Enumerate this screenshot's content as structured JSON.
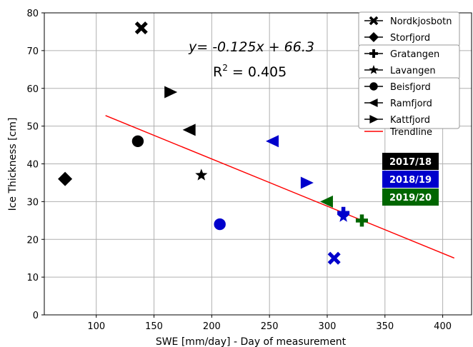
{
  "chart_data": {
    "type": "scatter",
    "xlabel": "SWE [mm/day] - Day of measurement",
    "ylabel": "Ice Thickness [cm]",
    "xlim": [
      55,
      425
    ],
    "ylim": [
      0,
      80
    ],
    "xticks": [
      100,
      150,
      200,
      250,
      300,
      350,
      400
    ],
    "yticks": [
      0,
      10,
      20,
      30,
      40,
      50,
      60,
      70,
      80
    ],
    "grid": true,
    "legend_position": "top-right",
    "equation_text": "y= -0.125x + 66.3",
    "r2_label": "R",
    "r2_superscript": "2",
    "r2_value": " = 0.405",
    "trendline": {
      "name": "Trendline",
      "slope": -0.125,
      "intercept": 66.3,
      "x_range": [
        108,
        410
      ],
      "color": "#ff0000"
    },
    "season_colors": {
      "2017/18": "#000000",
      "2018/19": "#0000cc",
      "2019/20": "#006600"
    },
    "season_badges": [
      "2017/18",
      "2018/19",
      "2019/20"
    ],
    "series": [
      {
        "name": "Nordkjosbotn",
        "marker": "x",
        "points": [
          {
            "x": 139,
            "y": 76,
            "season": "2017/18"
          },
          {
            "x": 306,
            "y": 15,
            "season": "2018/19"
          }
        ]
      },
      {
        "name": "Storfjord",
        "marker": "diamond",
        "points": [
          {
            "x": 73,
            "y": 36,
            "season": "2017/18"
          }
        ]
      },
      {
        "name": "Gratangen",
        "marker": "plus",
        "points": [
          {
            "x": 314,
            "y": 27,
            "season": "2018/19"
          },
          {
            "x": 330,
            "y": 25,
            "season": "2019/20"
          }
        ]
      },
      {
        "name": "Lavangen",
        "marker": "star",
        "points": [
          {
            "x": 191,
            "y": 37,
            "season": "2017/18"
          },
          {
            "x": 314,
            "y": 26,
            "season": "2018/19"
          }
        ]
      },
      {
        "name": "Beisfjord",
        "marker": "circle",
        "points": [
          {
            "x": 136,
            "y": 46,
            "season": "2017/18"
          },
          {
            "x": 207,
            "y": 24,
            "season": "2018/19"
          }
        ]
      },
      {
        "name": "Ramfjord",
        "marker": "triangle-left",
        "points": [
          {
            "x": 181,
            "y": 49,
            "season": "2017/18"
          },
          {
            "x": 253,
            "y": 46,
            "season": "2018/19"
          },
          {
            "x": 300,
            "y": 30,
            "season": "2019/20"
          }
        ]
      },
      {
        "name": "Kattfjord",
        "marker": "triangle-right",
        "points": [
          {
            "x": 164,
            "y": 59,
            "season": "2017/18"
          },
          {
            "x": 282,
            "y": 35,
            "season": "2018/19"
          }
        ]
      }
    ]
  }
}
